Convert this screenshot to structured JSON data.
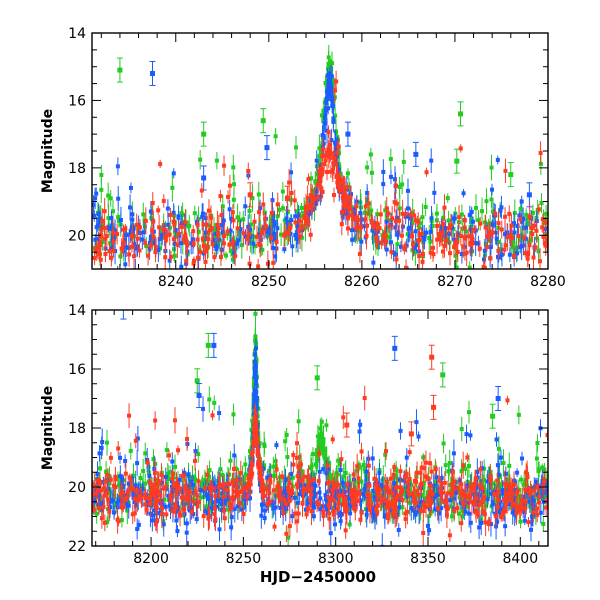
{
  "figure": {
    "xlabel": "HJD−2450000"
  },
  "chart_data": [
    {
      "type": "scatter",
      "panel": "top",
      "title": "",
      "xlabel": "",
      "ylabel": "Magnitude",
      "xlim": [
        8231,
        8280
      ],
      "ylim": [
        21,
        14
      ],
      "yaxis_inverted": true,
      "xticks": [
        8240,
        8250,
        8260,
        8270,
        8280
      ],
      "yticks": [
        14,
        16,
        18,
        20
      ],
      "grid": false,
      "legend": "none",
      "series": [
        {
          "color": "#22cc22",
          "baseline": 19.9,
          "peaks": [
            {
              "x": 8256.5,
              "peak": 15.0,
              "width": 0.9
            }
          ],
          "bright_outliers": [
            {
              "x": 8234.0,
              "y": 15.1
            },
            {
              "x": 8249.4,
              "y": 16.6
            },
            {
              "x": 8243.0,
              "y": 17.0
            },
            {
              "x": 8270.6,
              "y": 16.4
            },
            {
              "x": 8270.2,
              "y": 17.8
            },
            {
              "x": 8276.0,
              "y": 18.2
            }
          ]
        },
        {
          "color": "#1a5cff",
          "baseline": 20.0,
          "peaks": [
            {
              "x": 8256.5,
              "peak": 15.5,
              "width": 0.8
            }
          ],
          "bright_outliers": [
            {
              "x": 8237.5,
              "y": 15.2
            },
            {
              "x": 8258.5,
              "y": 17.0
            },
            {
              "x": 8265.8,
              "y": 17.6
            },
            {
              "x": 8249.8,
              "y": 17.4
            },
            {
              "x": 8243.0,
              "y": 18.3
            },
            {
              "x": 8278.0,
              "y": 18.8
            }
          ]
        },
        {
          "color": "#ff3b22",
          "baseline": 20.1,
          "peaks": [
            {
              "x": 8256.5,
              "peak": 17.6,
              "width": 1.6
            }
          ],
          "bright_outliers": [
            {
              "x": 8248.0,
              "y": 18.8
            },
            {
              "x": 8252.0,
              "y": 18.9
            }
          ]
        }
      ]
    },
    {
      "type": "scatter",
      "panel": "bottom",
      "title": "",
      "xlabel": "HJD−2450000",
      "ylabel": "Magnitude",
      "xlim": [
        8168,
        8415
      ],
      "ylim": [
        22,
        14
      ],
      "yaxis_inverted": true,
      "xticks": [
        8200,
        8250,
        8300,
        8350,
        8400
      ],
      "yticks": [
        14,
        16,
        18,
        20,
        22
      ],
      "grid": false,
      "legend": "none",
      "series": [
        {
          "color": "#22cc22",
          "baseline": 20.1,
          "peaks": [
            {
              "x": 8256.5,
              "peak": 15.0,
              "width": 1.2
            },
            {
              "x": 8292.0,
              "peak": 18.4,
              "width": 3.0
            }
          ],
          "bright_outliers": [
            {
              "x": 8231.0,
              "y": 15.2
            },
            {
              "x": 8225.0,
              "y": 16.4
            },
            {
              "x": 8290.0,
              "y": 16.3
            },
            {
              "x": 8358.0,
              "y": 16.2
            },
            {
              "x": 8385.0,
              "y": 17.6
            }
          ]
        },
        {
          "color": "#1a5cff",
          "baseline": 20.4,
          "peaks": [
            {
              "x": 8256.5,
              "peak": 15.8,
              "width": 1.0
            }
          ],
          "bright_outliers": [
            {
              "x": 8185.0,
              "y": 13.9
            },
            {
              "x": 8234.0,
              "y": 15.2
            },
            {
              "x": 8332.0,
              "y": 15.3
            },
            {
              "x": 8226.0,
              "y": 16.9
            },
            {
              "x": 8388.0,
              "y": 17.0
            }
          ]
        },
        {
          "color": "#ff3b22",
          "baseline": 20.3,
          "peaks": [
            {
              "x": 8256.5,
              "peak": 17.8,
              "width": 1.6
            }
          ],
          "bright_outliers": [
            {
              "x": 8352.0,
              "y": 15.6
            },
            {
              "x": 8353.0,
              "y": 17.3
            },
            {
              "x": 8306.0,
              "y": 17.9
            },
            {
              "x": 8341.0,
              "y": 18.2
            }
          ]
        }
      ]
    }
  ]
}
